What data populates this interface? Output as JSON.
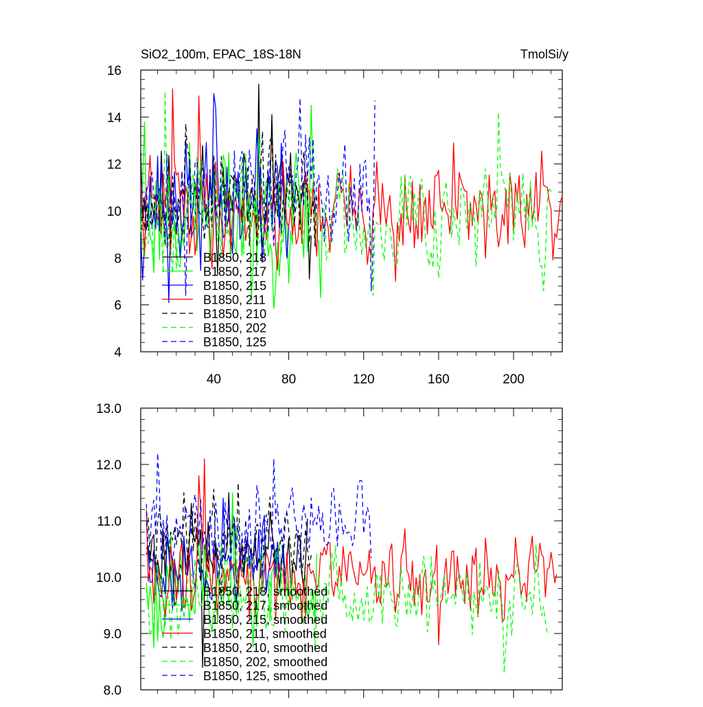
{
  "chart_data": [
    {
      "type": "line",
      "title": "SiO2_100m, EPAC_18S-18N",
      "title_right": "TmolSi/y",
      "xlim": [
        1,
        226
      ],
      "ylim": [
        4,
        16
      ],
      "xticks": [
        40,
        80,
        120,
        160,
        200
      ],
      "xtick_labels": [
        "40",
        "80",
        "120",
        "160",
        "200"
      ],
      "yticks": [
        4,
        6,
        8,
        10,
        12,
        14,
        16
      ],
      "ytick_labels": [
        "4",
        "6",
        "8",
        "10",
        "12",
        "14",
        "16"
      ],
      "legend_position": "bottom-left",
      "series": [
        {
          "name": "B1850, 218",
          "color": "#000000",
          "dash": "solid",
          "x_start": 1,
          "x_end": 92,
          "mean": 10.5,
          "amp": 1.1,
          "seed": 11,
          "anchors": [
            [
              1,
              12.5
            ],
            [
              64,
              15.4
            ],
            [
              71,
              14.1
            ],
            [
              91,
              7.1
            ]
          ]
        },
        {
          "name": "B1850, 217",
          "color": "#00ff00",
          "dash": "solid",
          "x_start": 1,
          "x_end": 98,
          "mean": 9.9,
          "amp": 1.4,
          "seed": 23,
          "anchors": [
            [
              3,
              13.8
            ],
            [
              60,
              6.2
            ],
            [
              92,
              14.5
            ],
            [
              97,
              6.3
            ]
          ]
        },
        {
          "name": "B1850, 215",
          "color": "#0000ff",
          "dash": "solid",
          "x_start": 1,
          "x_end": 80,
          "mean": 10.3,
          "amp": 1.3,
          "seed": 37,
          "anchors": [
            [
              16,
              6.1
            ],
            [
              40,
              15.0
            ],
            [
              63,
              13.5
            ],
            [
              79,
              8.0
            ]
          ]
        },
        {
          "name": "B1850, 211",
          "color": "#ff0000",
          "dash": "solid",
          "x_start": 1,
          "x_end": 226,
          "mean": 10.0,
          "amp": 1.0,
          "seed": 41,
          "anchors": [
            [
              18,
              15.2
            ],
            [
              32,
              14.9
            ],
            [
              137,
              7.0
            ],
            [
              168,
              12.9
            ],
            [
              225,
              10.4
            ]
          ]
        },
        {
          "name": "B1850, 210",
          "color": "#000000",
          "dash": "dash",
          "x_start": 1,
          "x_end": 95,
          "mean": 10.6,
          "amp": 1.0,
          "seed": 53,
          "anchors": [
            [
              25,
              13.7
            ],
            [
              70,
              13.0
            ],
            [
              94,
              8.5
            ]
          ]
        },
        {
          "name": "B1850, 202",
          "color": "#00ff00",
          "dash": "dash",
          "x_start": 1,
          "x_end": 220,
          "mean": 9.9,
          "amp": 1.1,
          "seed": 67,
          "anchors": [
            [
              14,
              15.1
            ],
            [
              125,
              6.4
            ],
            [
              192,
              14.2
            ],
            [
              216,
              6.6
            ],
            [
              219,
              11.0
            ]
          ]
        },
        {
          "name": "B1850, 125",
          "color": "#0000ff",
          "dash": "dash",
          "x_start": 1,
          "x_end": 126,
          "mean": 11.0,
          "amp": 1.1,
          "seed": 79,
          "anchors": [
            [
              25,
              6.4
            ],
            [
              86,
              14.8
            ],
            [
              124,
              6.6
            ],
            [
              126,
              14.7
            ]
          ]
        }
      ]
    },
    {
      "type": "line",
      "title": "",
      "xlim": [
        1,
        226
      ],
      "ylim": [
        8.0,
        13.0
      ],
      "xticks": [
        40,
        80,
        120,
        160,
        200
      ],
      "xtick_labels": [],
      "yticks": [
        8.0,
        9.0,
        10.0,
        11.0,
        12.0,
        13.0
      ],
      "ytick_labels": [
        "8.0",
        "9.0",
        "10.0",
        "11.0",
        "12.0",
        "13.0"
      ],
      "legend_position": "bottom-left",
      "series": [
        {
          "name": "B1850, 218, smoothed",
          "color": "#000000",
          "dash": "solid",
          "x_start": 4,
          "x_end": 90,
          "mean": 10.4,
          "amp": 0.35,
          "seed": 101,
          "anchors": [
            [
              4,
              10.5
            ],
            [
              34,
              8.4
            ],
            [
              48,
              11.5
            ],
            [
              66,
              10.1
            ],
            [
              89,
              10.3
            ]
          ]
        },
        {
          "name": "B1850, 217, smoothed",
          "color": "#00ff00",
          "dash": "solid",
          "x_start": 4,
          "x_end": 95,
          "mean": 9.8,
          "amp": 0.4,
          "seed": 113,
          "anchors": [
            [
              4,
              9.9
            ],
            [
              12,
              9.1
            ],
            [
              50,
              11.5
            ],
            [
              94,
              9.2
            ]
          ]
        },
        {
          "name": "B1850, 215, smoothed",
          "color": "#0000ff",
          "dash": "solid",
          "x_start": 4,
          "x_end": 78,
          "mean": 10.2,
          "amp": 0.35,
          "seed": 127,
          "anchors": [
            [
              4,
              10.4
            ],
            [
              23,
              9.4
            ],
            [
              45,
              11.4
            ],
            [
              77,
              10.4
            ]
          ]
        },
        {
          "name": "B1850, 211, smoothed",
          "color": "#ff0000",
          "dash": "solid",
          "x_start": 4,
          "x_end": 223,
          "mean": 10.0,
          "amp": 0.35,
          "seed": 131,
          "anchors": [
            [
              4,
              11.2
            ],
            [
              32,
              11.8
            ],
            [
              35,
              12.1
            ],
            [
              160,
              8.8
            ],
            [
              222,
              9.9
            ]
          ]
        },
        {
          "name": "B1850, 210, smoothed",
          "color": "#000000",
          "dash": "dash",
          "x_start": 4,
          "x_end": 92,
          "mean": 10.7,
          "amp": 0.35,
          "seed": 149,
          "anchors": [
            [
              4,
              10.9
            ],
            [
              24,
              11.5
            ],
            [
              60,
              10.5
            ],
            [
              91,
              10.2
            ]
          ]
        },
        {
          "name": "B1850, 202, smoothed",
          "color": "#00ff00",
          "dash": "dash",
          "x_start": 4,
          "x_end": 218,
          "mean": 9.7,
          "amp": 0.35,
          "seed": 157,
          "anchors": [
            [
              4,
              9.8
            ],
            [
              52,
              10.9
            ],
            [
              195,
              8.3
            ],
            [
              217,
              9.2
            ]
          ]
        },
        {
          "name": "B1850, 125, smoothed",
          "color": "#0000ff",
          "dash": "dash",
          "x_start": 4,
          "x_end": 124,
          "mean": 10.9,
          "amp": 0.35,
          "seed": 163,
          "anchors": [
            [
              4,
              11.3
            ],
            [
              10,
              12.2
            ],
            [
              72,
              12.1
            ],
            [
              112,
              10.8
            ],
            [
              123,
              11.1
            ]
          ]
        }
      ]
    }
  ]
}
